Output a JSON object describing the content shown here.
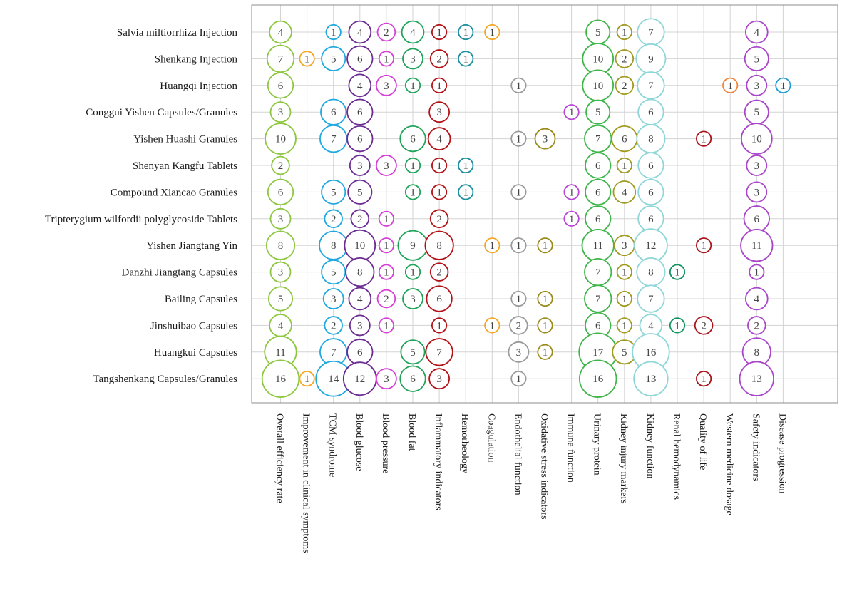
{
  "chart_data": {
    "type": "bubble-matrix",
    "title": "",
    "rows": [
      "Salvia miltiorrhiza Injection",
      "Shenkang Injection",
      "Huangqi Injection",
      "Conggui Yishen Capsules/Granules",
      "Yishen Huashi Granules",
      "Shenyan Kangfu Tablets",
      "Compound Xiancao Granules",
      "Tripterygium wilfordii polyglycoside Tablets",
      "Yishen Jiangtang Yin",
      "Danzhi Jiangtang Capsules",
      "Bailing Capsules",
      "Jinshuibao Capsules",
      "Huangkui Capsules",
      "Tangshenkang Capsules/Granules"
    ],
    "columns": [
      "Overall efficiency rate",
      "Improvement in clinical symptoms",
      "TCM syndrome",
      "Blood glucose",
      "Blood pressure",
      "Blood fat",
      "Inflammatory indicators",
      "Hemorheology",
      "Coagulation",
      "Endothelial function",
      "Oxidative stress indicators",
      "Immune function",
      "Urinary protein",
      "Kidney injury markers",
      "Kidney function",
      "Renal hemodynamics",
      "Quality of life",
      "Western medicine dosage",
      "Safety indicators",
      "Disease progression"
    ],
    "column_colors": [
      "#8dc63f",
      "#f5a623",
      "#1fa8e0",
      "#6a2c91",
      "#d63fd6",
      "#21a35a",
      "#b31217",
      "#1c8ea0",
      "#f5a623",
      "#9a9a9a",
      "#9a8a1a",
      "#b844d8",
      "#3fb54a",
      "#a09a20",
      "#8ed6d8",
      "#12925e",
      "#a8141a",
      "#f0843a",
      "#a845c8",
      "#1f9ad6"
    ],
    "values": [
      [
        4,
        null,
        1,
        4,
        2,
        4,
        1,
        1,
        1,
        null,
        null,
        null,
        5,
        1,
        7,
        null,
        null,
        null,
        4,
        null
      ],
      [
        7,
        1,
        5,
        6,
        1,
        3,
        2,
        1,
        null,
        null,
        null,
        null,
        10,
        2,
        9,
        null,
        null,
        null,
        5,
        null
      ],
      [
        6,
        null,
        null,
        4,
        3,
        1,
        1,
        null,
        null,
        1,
        null,
        null,
        10,
        2,
        7,
        null,
        null,
        1,
        3,
        1
      ],
      [
        3,
        null,
        6,
        6,
        null,
        null,
        3,
        null,
        null,
        null,
        null,
        1,
        5,
        null,
        6,
        null,
        null,
        null,
        5,
        null
      ],
      [
        10,
        null,
        7,
        6,
        null,
        6,
        4,
        null,
        null,
        1,
        3,
        null,
        7,
        6,
        8,
        null,
        1,
        null,
        10,
        null
      ],
      [
        2,
        null,
        null,
        3,
        3,
        1,
        1,
        1,
        null,
        null,
        null,
        null,
        6,
        1,
        6,
        null,
        null,
        null,
        3,
        null
      ],
      [
        6,
        null,
        5,
        5,
        null,
        1,
        1,
        1,
        null,
        1,
        null,
        1,
        6,
        4,
        6,
        null,
        null,
        null,
        3,
        null
      ],
      [
        3,
        null,
        2,
        2,
        1,
        null,
        2,
        null,
        null,
        null,
        null,
        1,
        6,
        null,
        6,
        null,
        null,
        null,
        6,
        null
      ],
      [
        8,
        null,
        8,
        10,
        1,
        9,
        8,
        null,
        1,
        1,
        1,
        null,
        11,
        3,
        12,
        null,
        1,
        null,
        11,
        null
      ],
      [
        3,
        null,
        5,
        8,
        1,
        1,
        2,
        null,
        null,
        null,
        null,
        null,
        7,
        1,
        8,
        1,
        null,
        null,
        1,
        null
      ],
      [
        5,
        null,
        3,
        4,
        2,
        3,
        6,
        null,
        null,
        1,
        1,
        null,
        7,
        1,
        7,
        null,
        null,
        null,
        4,
        null
      ],
      [
        4,
        null,
        2,
        3,
        1,
        null,
        1,
        null,
        1,
        2,
        1,
        null,
        6,
        1,
        4,
        1,
        2,
        null,
        2,
        null
      ],
      [
        11,
        null,
        7,
        6,
        null,
        5,
        7,
        null,
        null,
        3,
        1,
        null,
        17,
        5,
        16,
        null,
        null,
        null,
        8,
        null
      ],
      [
        16,
        1,
        14,
        12,
        3,
        6,
        3,
        null,
        null,
        1,
        null,
        null,
        16,
        null,
        13,
        null,
        1,
        null,
        13,
        null
      ]
    ],
    "legend": "none",
    "grid": true
  }
}
